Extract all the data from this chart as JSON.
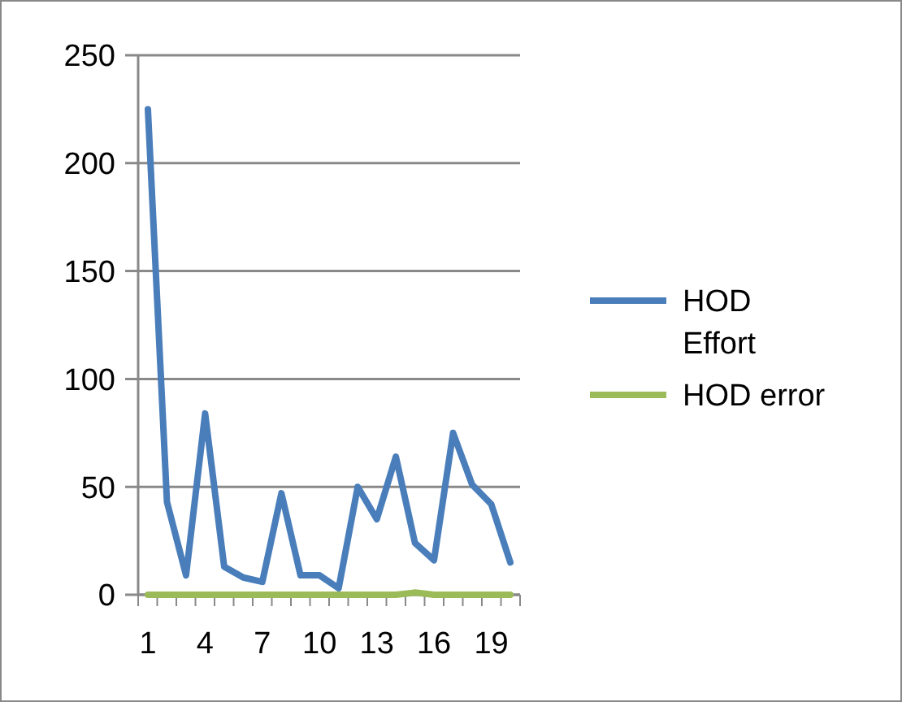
{
  "chart_data": {
    "type": "line",
    "categories": [
      "1",
      null,
      null,
      "4",
      null,
      null,
      "7",
      null,
      null,
      "10",
      null,
      null,
      "13",
      null,
      null,
      "16",
      null,
      null,
      "19",
      null
    ],
    "series": [
      {
        "name": "HOD Effort",
        "color": "#4a7ebb",
        "values": [
          225,
          43,
          9,
          84,
          13,
          8,
          6,
          47,
          9,
          9,
          3,
          50,
          35,
          64,
          24,
          16,
          75,
          51,
          42,
          15
        ]
      },
      {
        "name": "HOD error",
        "color": "#9bbb59",
        "values": [
          0,
          0,
          0,
          0,
          0,
          0,
          0,
          0,
          0,
          0,
          0,
          0,
          0,
          0,
          1,
          0,
          0,
          0,
          0,
          0
        ]
      }
    ],
    "ylim": [
      0,
      250
    ],
    "yticks": [
      0,
      50,
      100,
      150,
      200,
      250
    ],
    "grid": "y",
    "legend": "right",
    "line_style": "solid"
  }
}
